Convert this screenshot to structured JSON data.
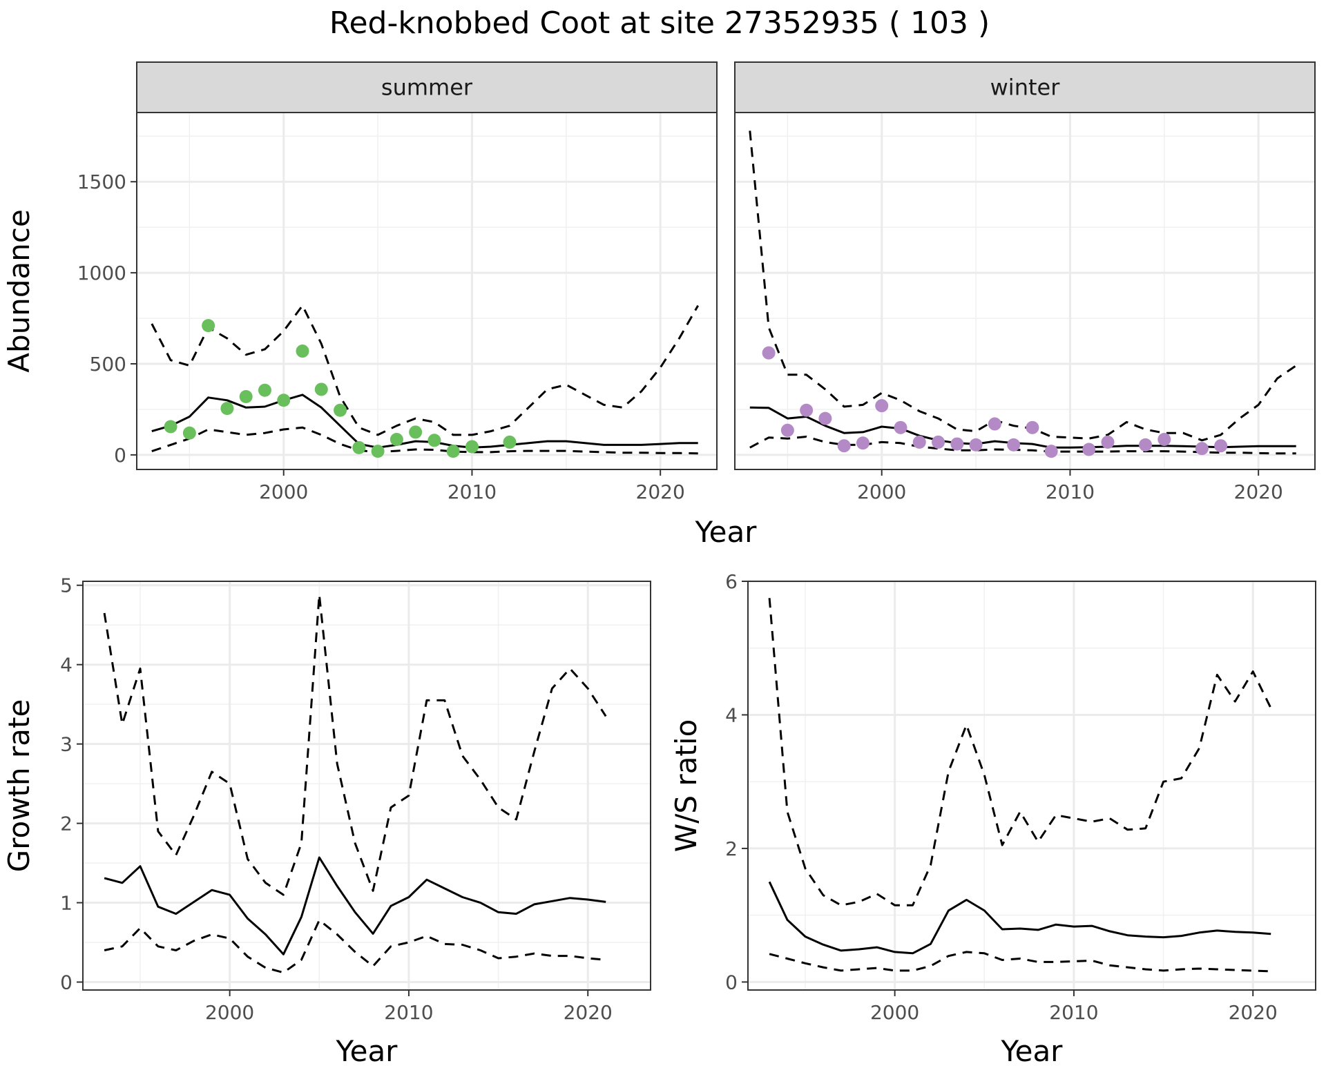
{
  "title": "Red-knobbed Coot at site 27352935 ( 103 )",
  "chart_data": [
    {
      "type": "line",
      "panel": "summer",
      "facet_label": "summer",
      "xlabel": "Year",
      "ylabel": "Abundance",
      "xlim": [
        1992.2,
        2023.0
      ],
      "ylim": [
        -80,
        1880
      ],
      "xticks": [
        2000,
        2010,
        2020
      ],
      "yticks": [
        0,
        500,
        1000,
        1500
      ],
      "point_color": "#6abf5d",
      "series": [
        {
          "style": "solid",
          "x": [
            1993,
            1994,
            1995,
            1996,
            1997,
            1998,
            1999,
            2000,
            2001,
            2002,
            2003,
            2004,
            2005,
            2006,
            2007,
            2008,
            2009,
            2010,
            2011,
            2012,
            2013,
            2014,
            2015,
            2016,
            2017,
            2018,
            2019,
            2020,
            2021,
            2022
          ],
          "y": [
            130,
            160,
            210,
            315,
            300,
            260,
            265,
            300,
            330,
            260,
            160,
            60,
            40,
            55,
            75,
            70,
            50,
            40,
            45,
            55,
            65,
            75,
            75,
            65,
            55,
            55,
            55,
            60,
            65,
            65
          ]
        },
        {
          "style": "dashed",
          "x": [
            1993,
            1994,
            1995,
            1996,
            1997,
            1998,
            1999,
            2000,
            2001,
            2002,
            2003,
            2004,
            2005,
            2006,
            2007,
            2008,
            2009,
            2010,
            2011,
            2012,
            2013,
            2014,
            2015,
            2016,
            2017,
            2018,
            2019,
            2020,
            2021,
            2022
          ],
          "y": [
            720,
            520,
            490,
            700,
            640,
            550,
            580,
            680,
            820,
            610,
            320,
            150,
            110,
            160,
            200,
            180,
            110,
            110,
            130,
            160,
            260,
            360,
            385,
            330,
            275,
            260,
            350,
            480,
            640,
            820
          ]
        },
        {
          "style": "dashed",
          "x": [
            1993,
            1994,
            1995,
            1996,
            1997,
            1998,
            1999,
            2000,
            2001,
            2002,
            2003,
            2004,
            2005,
            2006,
            2007,
            2008,
            2009,
            2010,
            2011,
            2012,
            2013,
            2014,
            2015,
            2016,
            2017,
            2018,
            2019,
            2020,
            2021,
            2022
          ],
          "y": [
            20,
            55,
            90,
            140,
            125,
            110,
            120,
            140,
            150,
            110,
            60,
            25,
            15,
            22,
            30,
            28,
            18,
            15,
            15,
            20,
            22,
            22,
            22,
            18,
            15,
            12,
            12,
            10,
            10,
            8
          ]
        }
      ],
      "points": {
        "x": [
          1994,
          1995,
          1996,
          1997,
          1998,
          1999,
          2000,
          2001,
          2002,
          2003,
          2004,
          2005,
          2006,
          2007,
          2008,
          2009,
          2010,
          2012
        ],
        "y": [
          155,
          120,
          710,
          255,
          320,
          355,
          300,
          570,
          360,
          245,
          40,
          20,
          85,
          125,
          80,
          20,
          45,
          70
        ]
      }
    },
    {
      "type": "line",
      "panel": "winter",
      "facet_label": "winter",
      "xlabel": "Year",
      "ylabel": "Abundance",
      "xlim": [
        1992.2,
        2023.0
      ],
      "ylim": [
        -80,
        1880
      ],
      "xticks": [
        2000,
        2010,
        2020
      ],
      "yticks": [
        0,
        500,
        1000,
        1500
      ],
      "point_color": "#b389c6",
      "series": [
        {
          "style": "solid",
          "x": [
            1993,
            1994,
            1995,
            1996,
            1997,
            1998,
            1999,
            2000,
            2001,
            2002,
            2003,
            2004,
            2005,
            2006,
            2007,
            2008,
            2009,
            2010,
            2011,
            2012,
            2013,
            2014,
            2015,
            2016,
            2017,
            2018,
            2019,
            2020,
            2021,
            2022
          ],
          "y": [
            260,
            258,
            200,
            210,
            160,
            120,
            125,
            155,
            145,
            105,
            80,
            65,
            60,
            75,
            65,
            60,
            40,
            40,
            42,
            45,
            50,
            50,
            50,
            48,
            45,
            42,
            45,
            48,
            48,
            48
          ]
        },
        {
          "style": "dashed",
          "x": [
            1993,
            1994,
            1995,
            1996,
            1997,
            1998,
            1999,
            2000,
            2001,
            2002,
            2003,
            2004,
            2005,
            2006,
            2007,
            2008,
            2009,
            2010,
            2011,
            2012,
            2013,
            2014,
            2015,
            2016,
            2017,
            2018,
            2019,
            2020,
            2021,
            2022
          ],
          "y": [
            1780,
            700,
            440,
            440,
            360,
            265,
            275,
            340,
            300,
            240,
            200,
            140,
            130,
            190,
            160,
            145,
            100,
            95,
            90,
            110,
            180,
            140,
            120,
            120,
            80,
            110,
            200,
            275,
            420,
            490
          ]
        },
        {
          "style": "dashed",
          "x": [
            1993,
            1994,
            1995,
            1996,
            1997,
            1998,
            1999,
            2000,
            2001,
            2002,
            2003,
            2004,
            2005,
            2006,
            2007,
            2008,
            2009,
            2010,
            2011,
            2012,
            2013,
            2014,
            2015,
            2016,
            2017,
            2018,
            2019,
            2020,
            2021,
            2022
          ],
          "y": [
            40,
            95,
            90,
            100,
            70,
            55,
            55,
            70,
            65,
            45,
            35,
            25,
            25,
            30,
            28,
            25,
            18,
            18,
            18,
            18,
            20,
            20,
            20,
            18,
            15,
            12,
            12,
            10,
            8,
            8
          ]
        }
      ],
      "points": {
        "x": [
          1994,
          1995,
          1996,
          1997,
          1998,
          1999,
          2000,
          2001,
          2002,
          2003,
          2004,
          2005,
          2006,
          2007,
          2008,
          2009,
          2011,
          2012,
          2014,
          2015,
          2017,
          2018
        ],
        "y": [
          560,
          135,
          245,
          200,
          50,
          65,
          270,
          150,
          70,
          70,
          60,
          55,
          170,
          55,
          150,
          20,
          30,
          70,
          55,
          85,
          35,
          50
        ]
      }
    },
    {
      "type": "line",
      "panel": "growth",
      "xlabel": "Year",
      "ylabel": "Growth rate",
      "xlim": [
        1991.8,
        2023.5
      ],
      "ylim": [
        -0.1,
        5.05
      ],
      "xticks": [
        2000,
        2010,
        2020
      ],
      "yticks": [
        0,
        1,
        2,
        3,
        4,
        5
      ],
      "series": [
        {
          "style": "solid",
          "x": [
            1993,
            1994,
            1995,
            1996,
            1997,
            1998,
            1999,
            2000,
            2001,
            2002,
            2003,
            2004,
            2005,
            2006,
            2007,
            2008,
            2009,
            2010,
            2011,
            2012,
            2013,
            2014,
            2015,
            2016,
            2017,
            2018,
            2019,
            2020,
            2021
          ],
          "y": [
            1.31,
            1.25,
            1.46,
            0.95,
            0.86,
            1.01,
            1.16,
            1.1,
            0.8,
            0.6,
            0.35,
            0.82,
            1.57,
            1.21,
            0.88,
            0.61,
            0.96,
            1.07,
            1.29,
            1.18,
            1.07,
            1.0,
            0.88,
            0.86,
            0.98,
            1.02,
            1.06,
            1.04,
            1.01
          ]
        },
        {
          "style": "dashed",
          "x": [
            1993,
            1994,
            1995,
            1996,
            1997,
            1998,
            1999,
            2000,
            2001,
            2002,
            2003,
            2004,
            2005,
            2006,
            2007,
            2008,
            2009,
            2010,
            2011,
            2012,
            2013,
            2014,
            2015,
            2016,
            2017,
            2018,
            2019,
            2020,
            2021
          ],
          "y": [
            4.65,
            3.25,
            3.95,
            1.9,
            1.6,
            2.1,
            2.65,
            2.5,
            1.55,
            1.25,
            1.1,
            1.75,
            4.88,
            2.75,
            1.75,
            1.15,
            2.2,
            2.35,
            3.55,
            3.55,
            2.85,
            2.55,
            2.2,
            2.05,
            2.9,
            3.7,
            3.95,
            3.7,
            3.35
          ]
        },
        {
          "style": "dashed",
          "x": [
            1993,
            1994,
            1995,
            1996,
            1997,
            1998,
            1999,
            2000,
            2001,
            2002,
            2003,
            2004,
            2005,
            2006,
            2007,
            2008,
            2009,
            2010,
            2011,
            2012,
            2013,
            2014,
            2015,
            2016,
            2017,
            2018,
            2019,
            2020,
            2021
          ],
          "y": [
            0.4,
            0.45,
            0.68,
            0.45,
            0.4,
            0.52,
            0.6,
            0.55,
            0.32,
            0.18,
            0.12,
            0.28,
            0.78,
            0.6,
            0.38,
            0.2,
            0.45,
            0.5,
            0.58,
            0.48,
            0.47,
            0.4,
            0.3,
            0.32,
            0.36,
            0.33,
            0.33,
            0.3,
            0.28
          ]
        }
      ]
    },
    {
      "type": "line",
      "panel": "ratio",
      "xlabel": "Year",
      "ylabel": "W/S ratio",
      "xlim": [
        1991.8,
        2023.5
      ],
      "ylim": [
        -0.12,
        6.0
      ],
      "xticks": [
        2000,
        2010,
        2020
      ],
      "yticks": [
        0,
        2,
        4,
        6
      ],
      "series": [
        {
          "style": "solid",
          "x": [
            1993,
            1994,
            1995,
            1996,
            1997,
            1998,
            1999,
            2000,
            2001,
            2002,
            2003,
            2004,
            2005,
            2006,
            2007,
            2008,
            2009,
            2010,
            2011,
            2012,
            2013,
            2014,
            2015,
            2016,
            2017,
            2018,
            2019,
            2020,
            2021
          ],
          "y": [
            1.5,
            0.93,
            0.68,
            0.56,
            0.47,
            0.49,
            0.52,
            0.45,
            0.43,
            0.57,
            1.07,
            1.23,
            1.07,
            0.79,
            0.8,
            0.78,
            0.86,
            0.83,
            0.84,
            0.76,
            0.7,
            0.68,
            0.67,
            0.69,
            0.74,
            0.77,
            0.75,
            0.74,
            0.72
          ]
        },
        {
          "style": "dashed",
          "x": [
            1993,
            1994,
            1995,
            1996,
            1997,
            1998,
            1999,
            2000,
            2001,
            2002,
            2003,
            2004,
            2005,
            2006,
            2007,
            2008,
            2009,
            2010,
            2011,
            2012,
            2013,
            2014,
            2015,
            2016,
            2017,
            2018,
            2019,
            2020,
            2021
          ],
          "y": [
            5.75,
            2.55,
            1.7,
            1.3,
            1.15,
            1.2,
            1.32,
            1.15,
            1.15,
            1.75,
            3.15,
            3.85,
            3.1,
            2.05,
            2.55,
            2.1,
            2.5,
            2.45,
            2.4,
            2.45,
            2.28,
            2.3,
            3.0,
            3.05,
            3.5,
            4.6,
            4.2,
            4.65,
            4.1
          ]
        },
        {
          "style": "dashed",
          "x": [
            1993,
            1994,
            1995,
            1996,
            1997,
            1998,
            1999,
            2000,
            2001,
            2002,
            2003,
            2004,
            2005,
            2006,
            2007,
            2008,
            2009,
            2010,
            2011,
            2012,
            2013,
            2014,
            2015,
            2016,
            2017,
            2018,
            2019,
            2020,
            2021
          ],
          "y": [
            0.42,
            0.35,
            0.28,
            0.22,
            0.17,
            0.19,
            0.21,
            0.17,
            0.17,
            0.24,
            0.39,
            0.45,
            0.43,
            0.33,
            0.35,
            0.3,
            0.3,
            0.31,
            0.32,
            0.25,
            0.22,
            0.19,
            0.17,
            0.19,
            0.2,
            0.19,
            0.18,
            0.17,
            0.16
          ]
        }
      ]
    }
  ]
}
